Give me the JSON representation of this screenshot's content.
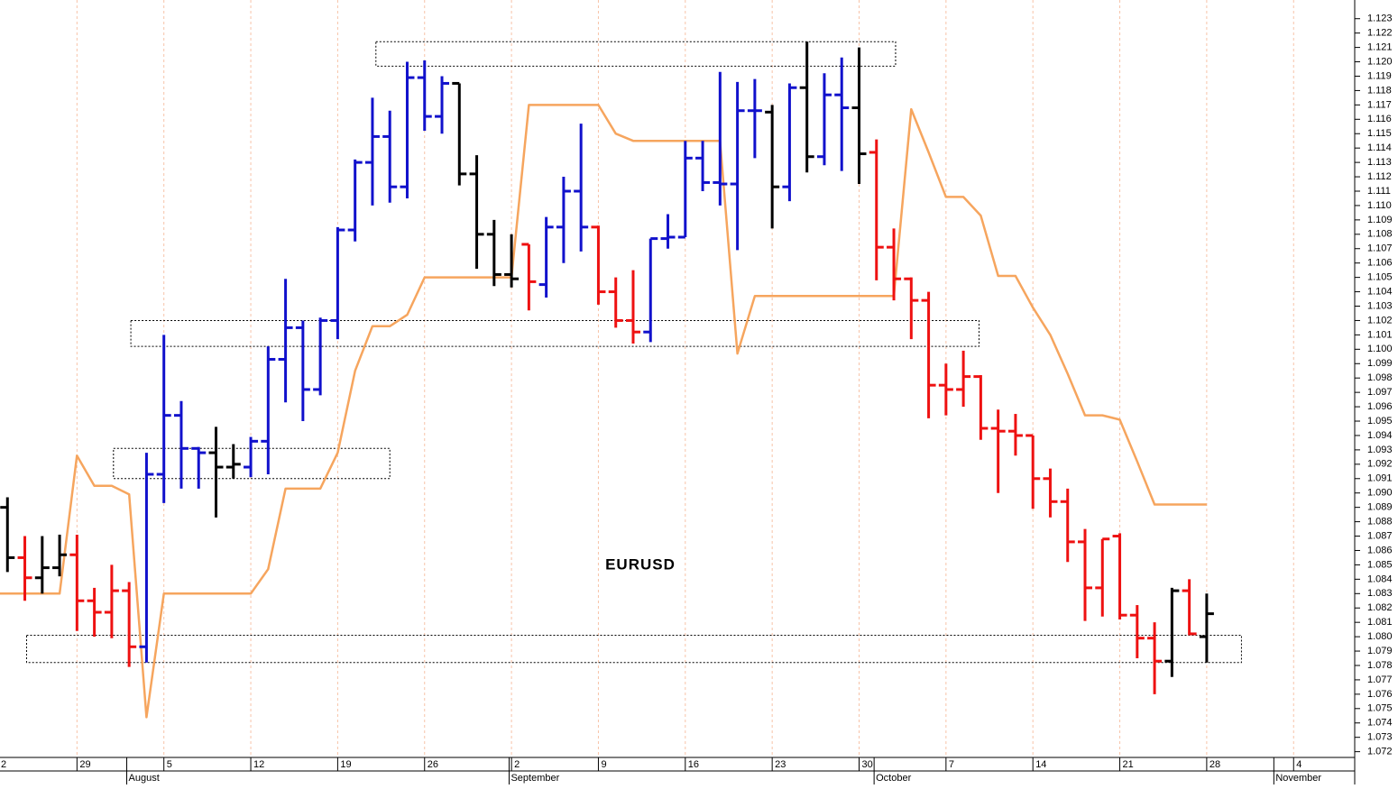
{
  "chart_data": {
    "type": "ohlc",
    "annotation": "EURUSD",
    "categories": [
      "2",
      null,
      null,
      null,
      null,
      "29",
      null,
      null,
      null,
      null,
      "5",
      null,
      null,
      null,
      null,
      "12",
      null,
      null,
      null,
      null,
      "19",
      null,
      null,
      null,
      null,
      "26",
      null,
      null,
      null,
      null,
      "2",
      null,
      null,
      null,
      null,
      "9",
      null,
      null,
      null,
      null,
      "16",
      null,
      null,
      null,
      null,
      "23",
      null,
      null,
      null,
      null,
      "30",
      null,
      null,
      null,
      null,
      "7",
      null,
      null,
      null,
      null,
      "14",
      null,
      null,
      null,
      null,
      "21",
      null,
      null,
      null,
      null,
      "28",
      null,
      null,
      null,
      null,
      "4",
      null,
      null,
      null,
      null
    ],
    "month_labels": [
      {
        "label": "August",
        "start": 8
      },
      {
        "label": "September",
        "start": 30
      },
      {
        "label": "October",
        "start": 51
      },
      {
        "label": "November",
        "start": 74
      }
    ],
    "open": [
      null,
      1.089,
      1.0855,
      1.0841,
      1.0848,
      1.0857,
      1.0825,
      1.0817,
      1.0832,
      1.0793,
      1.0913,
      1.0954,
      1.0931,
      1.0928,
      1.0918,
      1.0918,
      1.0936,
      1.0993,
      1.1015,
      1.0972,
      1.102,
      1.1083,
      1.113,
      1.1148,
      1.1113,
      1.1189,
      1.1162,
      1.1185,
      1.1122,
      1.108,
      1.1052,
      1.1073,
      1.1045,
      1.1085,
      1.111,
      1.1085,
      1.104,
      1.102,
      1.1012,
      1.1077,
      1.1078,
      1.1133,
      1.1116,
      1.1115,
      1.1166,
      1.1165,
      1.1113,
      1.1182,
      1.1134,
      1.1177,
      1.1168,
      1.1137,
      1.1071,
      1.1049,
      1.1034,
      1.0975,
      1.0972,
      1.0981,
      1.0945,
      1.0943,
      1.094,
      1.091,
      1.0894,
      1.0866,
      1.0834,
      1.087,
      1.0815,
      1.0799,
      1.0783,
      1.0832,
      1.08,
      null,
      null,
      null,
      null,
      null,
      null,
      null,
      null,
      null
    ],
    "high": [
      null,
      1.0897,
      1.087,
      1.087,
      1.0871,
      1.0871,
      1.0834,
      1.085,
      1.0838,
      1.0928,
      1.101,
      1.0964,
      1.0932,
      1.0946,
      1.0934,
      1.0939,
      1.1002,
      1.1049,
      1.102,
      1.1022,
      1.1085,
      1.1132,
      1.1175,
      1.1166,
      1.12,
      1.1201,
      1.119,
      1.1185,
      1.1135,
      1.109,
      1.108,
      1.1073,
      1.1092,
      1.112,
      1.1157,
      1.1086,
      1.105,
      1.1055,
      1.1077,
      1.1094,
      1.1145,
      1.1145,
      1.1193,
      1.1186,
      1.1188,
      1.117,
      1.1185,
      1.1214,
      1.1192,
      1.1203,
      1.121,
      1.1146,
      1.1084,
      1.105,
      1.104,
      1.099,
      1.0999,
      1.0982,
      1.0958,
      1.0955,
      1.094,
      1.0917,
      1.0903,
      1.0875,
      1.0868,
      1.0872,
      1.0822,
      1.081,
      1.0834,
      1.084,
      1.083,
      null,
      null,
      null,
      null,
      null,
      null,
      null,
      null,
      null
    ],
    "low": [
      null,
      1.0845,
      1.0825,
      1.083,
      1.0842,
      1.0804,
      1.08,
      1.0799,
      1.0779,
      1.0782,
      1.0893,
      1.0903,
      1.0903,
      1.0883,
      1.091,
      1.0911,
      1.0913,
      1.0963,
      1.095,
      1.0968,
      1.1007,
      1.1075,
      1.11,
      1.1102,
      1.1105,
      1.1152,
      1.115,
      1.1114,
      1.1056,
      1.1044,
      1.1043,
      1.1027,
      1.1036,
      1.106,
      1.1068,
      1.1031,
      1.1015,
      1.1004,
      1.1005,
      1.107,
      1.1078,
      1.111,
      1.11,
      1.1069,
      1.1133,
      1.1084,
      1.1103,
      1.1123,
      1.1128,
      1.1124,
      1.1115,
      1.1048,
      1.1034,
      1.1007,
      1.0952,
      1.0954,
      1.096,
      1.0937,
      1.09,
      1.0926,
      1.0889,
      1.0883,
      1.0852,
      1.0811,
      1.0814,
      1.0812,
      1.0785,
      1.076,
      1.0772,
      1.0801,
      1.0782,
      null,
      null,
      null,
      null,
      null,
      null,
      null,
      null,
      null
    ],
    "close": [
      null,
      1.0855,
      1.0841,
      1.0848,
      1.0857,
      1.0825,
      1.0817,
      1.0832,
      1.0793,
      1.0913,
      1.0954,
      1.0931,
      1.0928,
      1.0918,
      1.092,
      1.0936,
      1.0993,
      1.1015,
      1.0972,
      1.102,
      1.1083,
      1.113,
      1.1148,
      1.1113,
      1.1189,
      1.1162,
      1.1185,
      1.1122,
      1.108,
      1.1052,
      1.1049,
      1.1047,
      1.1085,
      1.111,
      1.1085,
      1.104,
      1.102,
      1.1012,
      1.1077,
      1.1078,
      1.1133,
      1.1116,
      1.1115,
      1.1166,
      1.1166,
      1.1113,
      1.1182,
      1.1134,
      1.1177,
      1.1168,
      1.1136,
      1.1071,
      1.1049,
      1.1034,
      1.0975,
      1.0972,
      1.0981,
      1.0945,
      1.0943,
      1.094,
      1.091,
      1.0894,
      1.0866,
      1.0834,
      1.0868,
      1.0815,
      1.0799,
      1.0783,
      1.0832,
      1.0802,
      1.0816,
      null,
      null,
      null,
      null,
      null,
      null,
      null,
      null,
      null
    ],
    "palette": {
      "k": "#000000",
      "r": "#ee1111",
      "b": "#1111cc"
    },
    "bar_colors": [
      null,
      "k",
      "r",
      "k",
      "k",
      "r",
      "r",
      "r",
      "r",
      "b",
      "b",
      "b",
      "b",
      "k",
      "k",
      "b",
      "b",
      "b",
      "b",
      "b",
      "b",
      "b",
      "b",
      "b",
      "b",
      "b",
      "b",
      "k",
      "k",
      "k",
      "k",
      "r",
      "b",
      "b",
      "b",
      "r",
      "r",
      "r",
      "b",
      "b",
      "b",
      "b",
      "b",
      "b",
      "b",
      "k",
      "b",
      "k",
      "b",
      "b",
      "k",
      "r",
      "r",
      "r",
      "r",
      "r",
      "r",
      "r",
      "r",
      "r",
      "r",
      "r",
      "r",
      "r",
      "r",
      "r",
      "r",
      "r",
      "k",
      "r",
      "k",
      null,
      null,
      null,
      null,
      null,
      null,
      null,
      null,
      null
    ],
    "line_color": "#f6a55e",
    "line_values": [
      1.083,
      1.083,
      1.083,
      1.083,
      1.083,
      1.0926,
      1.0905,
      1.0905,
      1.0899,
      1.0744,
      1.083,
      1.083,
      1.083,
      1.083,
      1.083,
      1.083,
      1.0847,
      1.0903,
      1.0903,
      1.0903,
      1.0928,
      1.0985,
      1.1016,
      1.1016,
      1.1024,
      1.105,
      1.105,
      1.105,
      1.105,
      1.105,
      1.105,
      1.117,
      1.117,
      1.117,
      1.117,
      1.117,
      1.115,
      1.1145,
      1.1145,
      1.1145,
      1.1145,
      1.1145,
      1.1145,
      1.0997,
      1.1037,
      1.1037,
      1.1037,
      1.1037,
      1.1037,
      1.1037,
      1.1037,
      1.1037,
      1.1037,
      1.1167,
      1.1137,
      1.1106,
      1.1106,
      1.1093,
      1.1051,
      1.1051,
      1.1029,
      1.101,
      1.0983,
      1.0954,
      1.0954,
      1.0951,
      1.0922,
      1.0892,
      1.0892,
      1.0892,
      1.0892,
      null,
      null,
      null,
      null,
      null,
      null,
      null,
      null,
      null
    ],
    "zones": [
      {
        "x": [
          22.2,
          52.1
        ],
        "y": [
          1.1197,
          1.1214
        ]
      },
      {
        "x": [
          8.1,
          56.9
        ],
        "y": [
          1.1002,
          1.102
        ]
      },
      {
        "x": [
          7.1,
          23.0
        ],
        "y": [
          1.091,
          1.0931
        ]
      },
      {
        "x": [
          2.1,
          72.0
        ],
        "y": [
          1.0782,
          1.0801
        ]
      }
    ],
    "ylim": [
      1.0716,
      1.1243
    ],
    "yticks": [
      1.072,
      1.073,
      1.074,
      1.075,
      1.076,
      1.077,
      1.078,
      1.079,
      {
        "value": 1.08,
        "label": "1.080"
      },
      1.081,
      1.082,
      1.083,
      1.084,
      1.085,
      1.086,
      1.087,
      1.088,
      1.089,
      {
        "value": 1.09,
        "label": "1.090"
      },
      1.091,
      1.092,
      1.093,
      1.094,
      1.095,
      1.096,
      1.097,
      1.098,
      1.099,
      {
        "value": 1.1,
        "label": "1.100"
      },
      1.101,
      1.102,
      1.103,
      1.104,
      1.105,
      1.106,
      1.107,
      1.108,
      1.109,
      {
        "value": 1.11,
        "label": "1.110"
      },
      1.111,
      1.112,
      1.113,
      1.114,
      1.115,
      1.116,
      1.117,
      1.118,
      1.119,
      {
        "value": 1.12,
        "label": "1.120"
      },
      1.121,
      1.122,
      1.123
    ],
    "grid": true
  }
}
